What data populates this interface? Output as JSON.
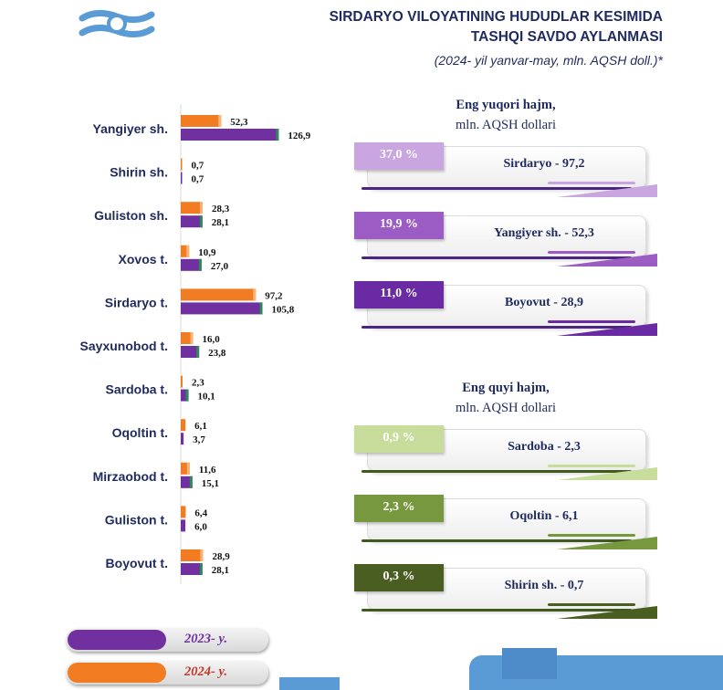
{
  "header": {
    "title_line1": "SIRDARYO VILOYATINING HUDUDLAR KESIMIDA",
    "title_line2": "TASHQI SAVDO AYLANMASI",
    "subtitle": "(2024- yil yanvar-may, mln. AQSH doll.)*"
  },
  "colors": {
    "orange": "#f27c22",
    "purple": "#7030a0",
    "green": "#2e8b57",
    "navy": "#1f2a5e",
    "logo_blue": "#5b9bd5"
  },
  "chart_data": {
    "type": "bar",
    "orientation": "horizontal",
    "categories": [
      "Yangiyer sh.",
      "Shirin sh.",
      "Guliston sh.",
      "Xovos t.",
      "Sirdaryo t.",
      "Sayxunobod t.",
      "Sardoba t.",
      "Oqoltin t.",
      "Mirzaobod t.",
      "Guliston t.",
      "Boyovut t."
    ],
    "series": [
      {
        "name": "2024- y.",
        "color": "#f27c22",
        "values": [
          52.3,
          0.7,
          28.3,
          10.9,
          97.2,
          16.0,
          2.3,
          6.1,
          11.6,
          6.4,
          28.9
        ],
        "labels": [
          "52,3",
          "0,7",
          "28,3",
          "10,9",
          "97,2",
          "16,0",
          "2,3",
          "6,1",
          "11,6",
          "6,4",
          "28,9"
        ]
      },
      {
        "name": "2023- y.",
        "color": "#7030a0",
        "values": [
          126.9,
          0.7,
          28.1,
          27.0,
          105.8,
          23.8,
          10.1,
          3.7,
          15.1,
          6.0,
          28.1
        ],
        "labels": [
          "126,9",
          "0,7",
          "28,1",
          "27,0",
          "105,8",
          "23,8",
          "10,1",
          "3,7",
          "15,1",
          "6,0",
          "28,1"
        ]
      }
    ],
    "xlim": [
      0,
      130
    ],
    "grid": false,
    "legend": "bottom-left"
  },
  "top_panel": {
    "heading1": "Eng yuqori hajm,",
    "heading2": "mln. AQSH dollari",
    "cards": [
      {
        "pct": "37,0 %",
        "label": "Sirdaryo - 97,2",
        "color": "#c9a6e0"
      },
      {
        "pct": "19,9 %",
        "label": "Yangiyer sh. - 52,3",
        "color": "#9b5cc4"
      },
      {
        "pct": "11,0 %",
        "label": "Boyovut  - 28,9",
        "color": "#6a2aa4"
      }
    ]
  },
  "bottom_panel": {
    "heading1": "Eng quyi hajm,",
    "heading2": "mln. AQSH dollari",
    "cards": [
      {
        "pct": "0,9 %",
        "label": "Sardoba -  2,3",
        "color": "#c8dc9c"
      },
      {
        "pct": "2,3 %",
        "label": "Oqoltin - 6,1",
        "color": "#77983e"
      },
      {
        "pct": "0,3 %",
        "label": "Shirin sh. - 0,7",
        "color": "#4a5e22"
      }
    ]
  },
  "legend": {
    "item_2023": "2023- y.",
    "item_2024": "2024- y."
  }
}
